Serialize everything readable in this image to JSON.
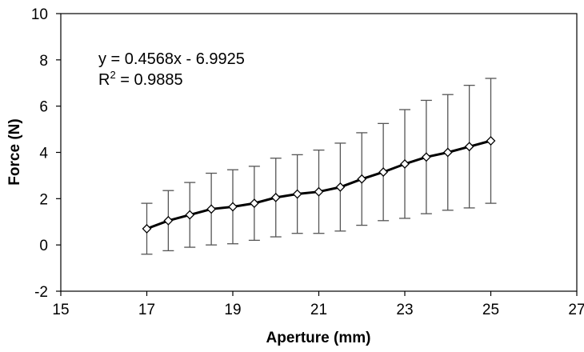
{
  "chart_data": {
    "type": "line",
    "title": "",
    "xlabel": "Aperture (mm)",
    "ylabel": "Force (N)",
    "xlim": [
      15,
      27
    ],
    "ylim": [
      -2,
      10
    ],
    "xticks": [
      15,
      17,
      19,
      21,
      23,
      25,
      27
    ],
    "yticks": [
      -2,
      0,
      2,
      4,
      6,
      8,
      10
    ],
    "grid": false,
    "legend": "none",
    "marker": "diamond",
    "line_color": "#000000",
    "errorbar_color": "#555555",
    "series": [
      {
        "x": [
          17,
          17.5,
          18,
          18.5,
          19,
          19.5,
          20,
          20.5,
          21,
          21.5,
          22,
          22.5,
          23,
          23.5,
          24,
          24.5,
          25
        ],
        "y": [
          0.7,
          1.05,
          1.3,
          1.55,
          1.65,
          1.8,
          2.05,
          2.2,
          2.3,
          2.5,
          2.85,
          3.15,
          3.5,
          3.8,
          4.0,
          4.25,
          4.5
        ],
        "error": [
          1.1,
          1.3,
          1.4,
          1.55,
          1.6,
          1.6,
          1.7,
          1.7,
          1.8,
          1.9,
          2.0,
          2.1,
          2.35,
          2.45,
          2.5,
          2.65,
          2.7
        ]
      }
    ],
    "annotations": {
      "equation": "y = 0.4568x - 6.9925",
      "r2_prefix": "R",
      "r2_superscript": "2",
      "r2_value": " = 0.9885"
    }
  }
}
